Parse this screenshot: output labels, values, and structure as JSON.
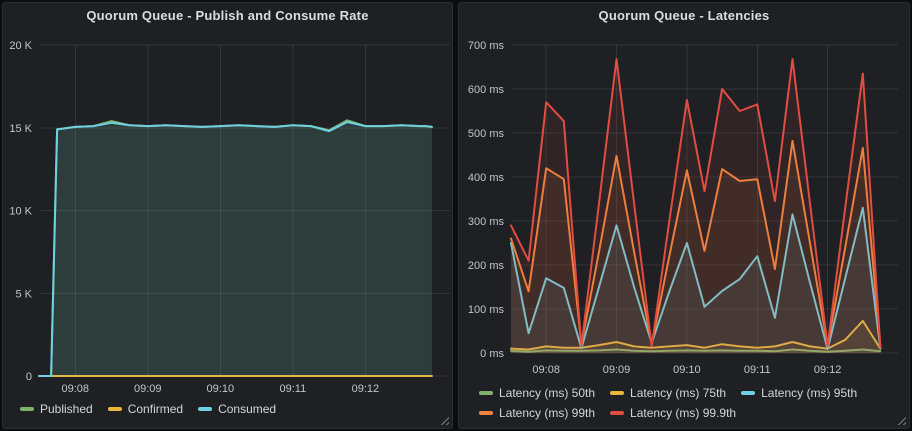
{
  "accent_colors": {
    "green": "#7EB26D",
    "yellow": "#EAB839",
    "cyan": "#6ED0E0",
    "orange": "#EF843C",
    "red": "#E24D42",
    "panel_bg": "#1e2024",
    "page_bg": "#0c0d0f",
    "title_text": "#dcdde0",
    "tick_text": "#c3c5c8"
  },
  "chart_data": [
    {
      "type": "line",
      "title": "Quorum Queue - Publish and Consume Rate",
      "legend_position": "bottom",
      "grid": true,
      "ylim": [
        0,
        20000
      ],
      "y_tick_labels": [
        "0",
        "5 K",
        "10 K",
        "15 K",
        "20 K"
      ],
      "x_tick_labels": [
        "09:08",
        "09:09",
        "09:10",
        "09:11",
        "09:12"
      ],
      "x_range": [
        "09:07:30",
        "09:13:10"
      ],
      "x": [
        "09:07:30",
        "09:07:40",
        "09:07:45",
        "09:08:00",
        "09:08:15",
        "09:08:30",
        "09:08:45",
        "09:09:00",
        "09:09:15",
        "09:09:30",
        "09:09:45",
        "09:10:00",
        "09:10:15",
        "09:10:30",
        "09:10:45",
        "09:11:00",
        "09:11:15",
        "09:11:30",
        "09:11:45",
        "09:12:00",
        "09:12:15",
        "09:12:30",
        "09:12:45",
        "09:12:50",
        "09:12:55"
      ],
      "series": [
        {
          "name": "Published",
          "color": "#7EB26D",
          "values": [
            0,
            0,
            14900,
            15050,
            15100,
            15400,
            15150,
            15100,
            15150,
            15100,
            15050,
            15100,
            15150,
            15100,
            15050,
            15150,
            15100,
            14850,
            15450,
            15100,
            15100,
            15150,
            15100,
            15100,
            15050
          ]
        },
        {
          "name": "Confirmed",
          "color": "#EAB839",
          "values": [
            0,
            0,
            0,
            0,
            0,
            0,
            0,
            0,
            0,
            0,
            0,
            0,
            0,
            0,
            0,
            0,
            0,
            0,
            0,
            0,
            0,
            0,
            0,
            0,
            0
          ]
        },
        {
          "name": "Consumed",
          "color": "#6ED0E0",
          "values": [
            0,
            0,
            14900,
            15050,
            15100,
            15300,
            15150,
            15100,
            15150,
            15100,
            15050,
            15100,
            15150,
            15100,
            15050,
            15150,
            15100,
            14800,
            15350,
            15100,
            15100,
            15150,
            15100,
            15100,
            15050
          ]
        }
      ]
    },
    {
      "type": "line",
      "title": "Quorum Queue - Latencies",
      "legend_position": "bottom",
      "grid": true,
      "ylim": [
        0,
        700
      ],
      "y_tick_labels": [
        "0 ms",
        "100 ms",
        "200 ms",
        "300 ms",
        "400 ms",
        "500 ms",
        "600 ms",
        "700 ms"
      ],
      "x_tick_labels": [
        "09:08",
        "09:09",
        "09:10",
        "09:11",
        "09:12"
      ],
      "x_range": [
        "09:07:30",
        "09:13:00"
      ],
      "x": [
        "09:07:30",
        "09:07:45",
        "09:08:00",
        "09:08:15",
        "09:08:30",
        "09:08:45",
        "09:09:00",
        "09:09:15",
        "09:09:30",
        "09:09:45",
        "09:10:00",
        "09:10:15",
        "09:10:30",
        "09:10:45",
        "09:11:00",
        "09:11:15",
        "09:11:30",
        "09:11:45",
        "09:12:00",
        "09:12:15",
        "09:12:30",
        "09:12:45"
      ],
      "series": [
        {
          "name": "Latency (ms) 50th",
          "color": "#7EB26D",
          "values": [
            5,
            3,
            6,
            5,
            5,
            6,
            8,
            5,
            4,
            5,
            6,
            5,
            6,
            5,
            5,
            4,
            8,
            5,
            3,
            5,
            8,
            4
          ]
        },
        {
          "name": "Latency (ms) 75th",
          "color": "#EAB839",
          "values": [
            10,
            8,
            15,
            12,
            12,
            18,
            25,
            15,
            12,
            15,
            18,
            12,
            20,
            15,
            12,
            15,
            25,
            15,
            10,
            30,
            73,
            10
          ]
        },
        {
          "name": "Latency (ms) 95th",
          "color": "#6ED0E0",
          "values": [
            250,
            45,
            170,
            148,
            11,
            150,
            290,
            150,
            23,
            140,
            250,
            105,
            141,
            168,
            220,
            80,
            315,
            160,
            9,
            170,
            330,
            10
          ]
        },
        {
          "name": "Latency (ms) 99th",
          "color": "#EF843C",
          "values": [
            260,
            140,
            420,
            395,
            20,
            230,
            448,
            230,
            20,
            220,
            415,
            232,
            418,
            391,
            395,
            191,
            482,
            250,
            16,
            240,
            466,
            14
          ]
        },
        {
          "name": "Latency (ms) 99.9th",
          "color": "#E24D42",
          "values": [
            290,
            210,
            570,
            527,
            16,
            340,
            668,
            340,
            16,
            300,
            575,
            368,
            600,
            550,
            565,
            345,
            668,
            340,
            16,
            330,
            635,
            12
          ]
        }
      ]
    }
  ]
}
